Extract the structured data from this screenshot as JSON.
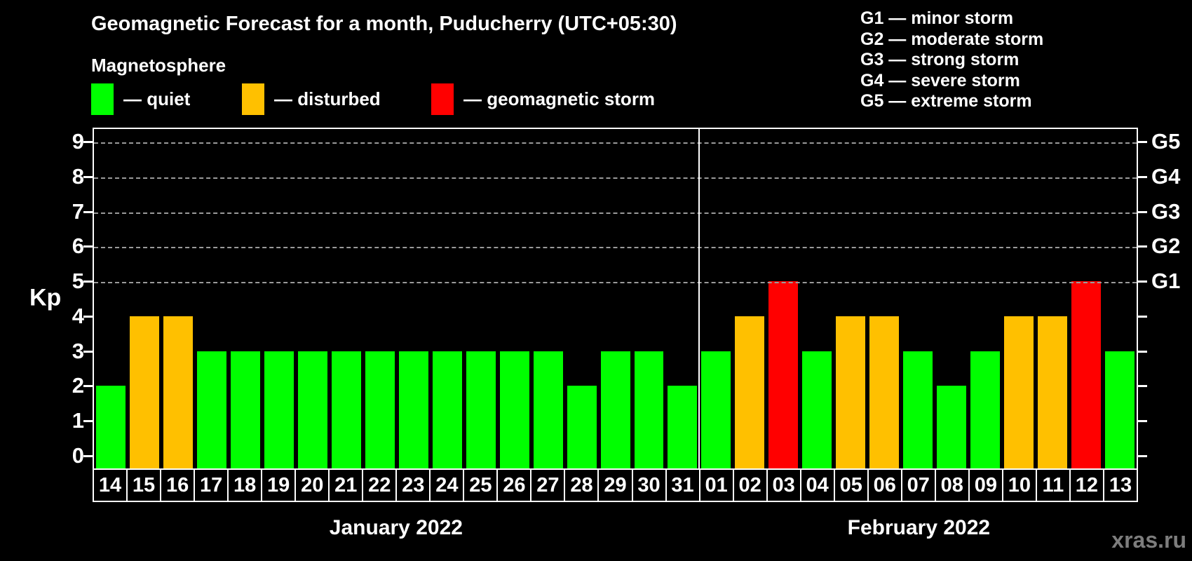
{
  "title": "Geomagnetic Forecast for a month, Puducherry (UTC+05:30)",
  "subtitle": "Magnetosphere",
  "legend": {
    "items": [
      {
        "key": "quiet",
        "label": "— quiet",
        "color": "#00ff00"
      },
      {
        "key": "disturbed",
        "label": "— disturbed",
        "color": "#ffc000"
      },
      {
        "key": "storm",
        "label": "— geomagnetic storm",
        "color": "#ff0000"
      }
    ]
  },
  "g_scale_legend": [
    "G1 — minor storm",
    "G2 — moderate storm",
    "G3 — strong storm",
    "G4 — severe storm",
    "G5 — extreme storm"
  ],
  "watermark": "xras.ru",
  "colors": {
    "background": "#000000",
    "axis": "#ffffff",
    "gridline": "#9a9a9a",
    "watermark": "#7d7d7d",
    "status": {
      "quiet": "#00ff00",
      "disturbed": "#ffc000",
      "storm": "#ff0000"
    }
  },
  "chart_data": {
    "type": "bar",
    "title": "Geomagnetic Forecast for a month, Puducherry (UTC+05:30)",
    "ylabel": "Kp",
    "ylim": [
      0,
      9
    ],
    "yticks": [
      0,
      1,
      2,
      3,
      4,
      5,
      6,
      7,
      8,
      9
    ],
    "gridlines_at": [
      5,
      6,
      7,
      8,
      9
    ],
    "grid": "dashed, horizontal, only at Kp 5-9",
    "right_axis_ticks": [
      {
        "value": 5,
        "label": "G1"
      },
      {
        "value": 6,
        "label": "G2"
      },
      {
        "value": 7,
        "label": "G3"
      },
      {
        "value": 8,
        "label": "G4"
      },
      {
        "value": 9,
        "label": "G5"
      }
    ],
    "months": [
      {
        "label": "January 2022",
        "days": 18
      },
      {
        "label": "February 2022",
        "days": 13
      }
    ],
    "categories": [
      "14",
      "15",
      "16",
      "17",
      "18",
      "19",
      "20",
      "21",
      "22",
      "23",
      "24",
      "25",
      "26",
      "27",
      "28",
      "29",
      "30",
      "31",
      "01",
      "02",
      "03",
      "04",
      "05",
      "06",
      "07",
      "08",
      "09",
      "10",
      "11",
      "12",
      "13"
    ],
    "values": [
      2,
      4,
      4,
      3,
      3,
      3,
      3,
      3,
      3,
      3,
      3,
      3,
      3,
      3,
      2,
      3,
      3,
      2,
      3,
      4,
      5,
      3,
      4,
      4,
      3,
      2,
      3,
      4,
      4,
      5,
      3
    ],
    "statuses": [
      "quiet",
      "disturbed",
      "disturbed",
      "quiet",
      "quiet",
      "quiet",
      "quiet",
      "quiet",
      "quiet",
      "quiet",
      "quiet",
      "quiet",
      "quiet",
      "quiet",
      "quiet",
      "quiet",
      "quiet",
      "quiet",
      "quiet",
      "disturbed",
      "storm",
      "quiet",
      "disturbed",
      "disturbed",
      "quiet",
      "quiet",
      "quiet",
      "disturbed",
      "disturbed",
      "storm",
      "quiet"
    ]
  }
}
